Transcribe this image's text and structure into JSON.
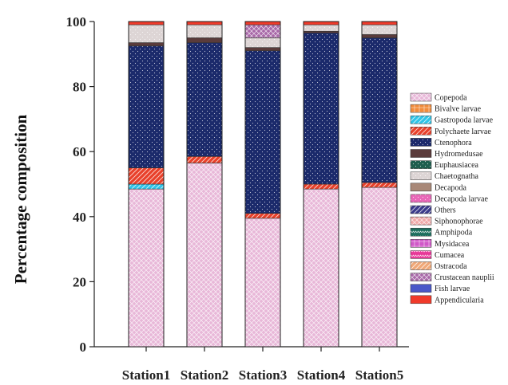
{
  "chart_data": {
    "type": "bar",
    "stacked": true,
    "ylabel": "Percentage composition",
    "xlabel": "",
    "ylim": [
      0,
      100
    ],
    "yticks": [
      0,
      20,
      40,
      60,
      80,
      100
    ],
    "categories": [
      "Station1",
      "Station2",
      "Station3",
      "Station4",
      "Station5"
    ],
    "legend_position": "right",
    "series": [
      {
        "name": "Copepoda",
        "color": "#e8b7d8",
        "pattern": "crosshatch",
        "values": [
          48.5,
          56.5,
          39.5,
          48.5,
          49.0
        ]
      },
      {
        "name": "Bivalve larvae",
        "color": "#f28c3c",
        "pattern": "grid",
        "values": [
          0,
          0,
          0,
          0,
          0
        ]
      },
      {
        "name": "Gastropoda larvae",
        "color": "#2ec4e8",
        "pattern": "diagonal",
        "values": [
          1.5,
          0,
          0,
          0,
          0
        ]
      },
      {
        "name": "Polychaete larvae",
        "color": "#e8402a",
        "pattern": "diagonal",
        "values": [
          5.0,
          2.0,
          1.5,
          1.5,
          1.5
        ]
      },
      {
        "name": "Ctenophora",
        "color": "#1b2a6b",
        "pattern": "dots",
        "values": [
          37.5,
          35.0,
          50.0,
          46.5,
          44.5
        ]
      },
      {
        "name": "Hydromedusae",
        "color": "#5a3b3b",
        "pattern": "solid",
        "values": [
          1.0,
          1.5,
          1.0,
          0.5,
          1.0
        ]
      },
      {
        "name": "Euphausiacea",
        "color": "#1e5e4e",
        "pattern": "dots",
        "values": [
          0,
          0,
          0,
          0,
          0
        ]
      },
      {
        "name": "Chaetognatha",
        "color": "#ddd5d5",
        "pattern": "dots",
        "values": [
          5.5,
          4.0,
          3.0,
          2.0,
          3.0
        ]
      },
      {
        "name": "Decapoda",
        "color": "#a88878",
        "pattern": "solid",
        "values": [
          0,
          0,
          0,
          0,
          0
        ]
      },
      {
        "name": "Decapoda larvae",
        "color": "#e868b8",
        "pattern": "dots",
        "values": [
          0,
          0,
          0,
          0,
          0
        ]
      },
      {
        "name": "Others",
        "color": "#3a3a8a",
        "pattern": "diagonal",
        "values": [
          0,
          0,
          0,
          0,
          0
        ]
      },
      {
        "name": "Siphonophorae",
        "color": "#f0a8a8",
        "pattern": "crosshatch",
        "values": [
          0,
          0,
          0,
          0,
          0
        ]
      },
      {
        "name": "Amphipoda",
        "color": "#1e6e5e",
        "pattern": "zigzag",
        "values": [
          0,
          0,
          0,
          0,
          0
        ]
      },
      {
        "name": "Mysidacea",
        "color": "#d058c8",
        "pattern": "grid",
        "values": [
          0,
          0,
          0,
          0,
          0
        ]
      },
      {
        "name": "Cumacea",
        "color": "#e83898",
        "pattern": "zigzag",
        "values": [
          0,
          0,
          0,
          0,
          0
        ]
      },
      {
        "name": "Ostracoda",
        "color": "#f0a878",
        "pattern": "diagonal",
        "values": [
          0,
          0,
          0,
          0,
          0
        ]
      },
      {
        "name": "Crustacean nauplii",
        "color": "#a868a8",
        "pattern": "crosshatch",
        "values": [
          0,
          0,
          4.0,
          0,
          0
        ]
      },
      {
        "name": "Fish larvae",
        "color": "#4a58c8",
        "pattern": "solid",
        "values": [
          0,
          0,
          0,
          0,
          0
        ]
      },
      {
        "name": "Appendicularia",
        "color": "#f03a2a",
        "pattern": "solid",
        "values": [
          1.0,
          1.0,
          1.0,
          1.0,
          1.0
        ]
      }
    ]
  }
}
